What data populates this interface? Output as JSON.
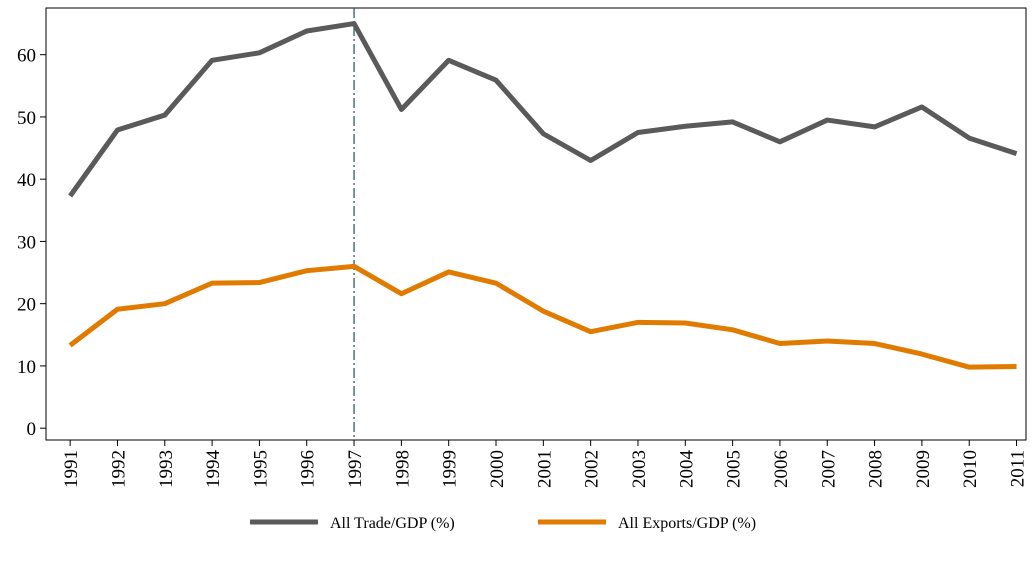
{
  "chart_data": {
    "type": "line",
    "x": [
      1991,
      1992,
      1993,
      1994,
      1995,
      1996,
      1997,
      1998,
      1999,
      2000,
      2001,
      2002,
      2003,
      2004,
      2005,
      2006,
      2007,
      2008,
      2009,
      2010,
      2011
    ],
    "series": [
      {
        "name": "All Trade/GDP (%)",
        "color": "#5a5a5a",
        "values": [
          37.3,
          47.9,
          50.3,
          59.1,
          60.3,
          63.8,
          65.0,
          51.2,
          59.1,
          55.9,
          47.3,
          43.0,
          47.5,
          48.5,
          49.2,
          46.0,
          49.5,
          48.4,
          51.6,
          46.6,
          44.1
        ]
      },
      {
        "name": "All Exports/GDP (%)",
        "color": "#e07b00",
        "values": [
          13.3,
          19.1,
          20.0,
          23.3,
          23.4,
          25.3,
          26.0,
          21.6,
          25.1,
          23.3,
          18.8,
          15.5,
          17.0,
          16.9,
          15.8,
          13.6,
          14.0,
          13.6,
          11.9,
          9.8,
          9.9
        ]
      }
    ],
    "xlim": [
      1990.49,
      2011.2
    ],
    "xticks": [
      1991,
      1992,
      1993,
      1994,
      1995,
      1996,
      1997,
      1998,
      1999,
      2000,
      2001,
      2002,
      2003,
      2004,
      2005,
      2006,
      2007,
      2008,
      2009,
      2010,
      2011
    ],
    "ylim": [
      -1.9,
      67.5
    ],
    "yticks": [
      0,
      10,
      20,
      30,
      40,
      50,
      60
    ],
    "vline": 1997,
    "legend": "bottom"
  }
}
